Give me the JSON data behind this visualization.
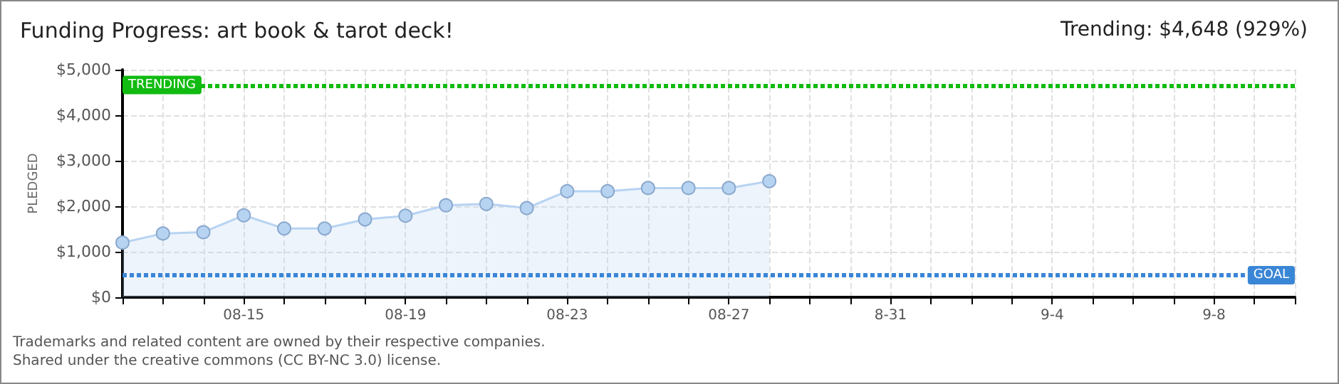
{
  "chart_data": {
    "type": "area",
    "title": "Funding Progress: art book & tarot deck!",
    "subtitle": "Trending: $4,648 (929%)",
    "ylabel": "PLEDGED",
    "categories": [
      null,
      null,
      null,
      "08-15",
      null,
      null,
      null,
      "08-19",
      null,
      null,
      null,
      "08-23",
      null,
      null,
      null,
      "08-27",
      null,
      null,
      null,
      "8-31",
      null,
      null,
      null,
      "9-4",
      null,
      null,
      null,
      "9-8",
      null,
      null
    ],
    "series": [
      {
        "color": "#b7d3f2",
        "values": [
          1200,
          1400,
          1430,
          1800,
          1510,
          1510,
          1710,
          1790,
          2020,
          2050,
          1960,
          2330,
          2330,
          2400,
          2400,
          2400,
          2550,
          null,
          null,
          null,
          null,
          null,
          null,
          null,
          null,
          null,
          null,
          null,
          null,
          null
        ]
      }
    ],
    "ylim": [
      0,
      5000
    ],
    "yticks": [
      {
        "value": 0,
        "label": "$0"
      },
      {
        "value": 1000,
        "label": "$1,000"
      },
      {
        "value": 2000,
        "label": "$2,000"
      },
      {
        "value": 3000,
        "label": "$3,000"
      },
      {
        "value": 4000,
        "label": "$4,000"
      },
      {
        "value": 5000,
        "label": "$5,000"
      }
    ],
    "grid": true,
    "marker": "circle",
    "ref_lines": [
      {
        "axis": "y",
        "value": 4648,
        "label": "TRENDING",
        "color": "#11bb11",
        "line_style": "dotted"
      },
      {
        "axis": "y",
        "value": 500,
        "label": "GOAL",
        "color": "#3a86d6",
        "line_style": "dotted"
      }
    ],
    "annotations": [
      "Trademarks and related content are owned by their respective companies.",
      "Shared under the creative commons (CC BY-NC 3.0) license."
    ]
  }
}
